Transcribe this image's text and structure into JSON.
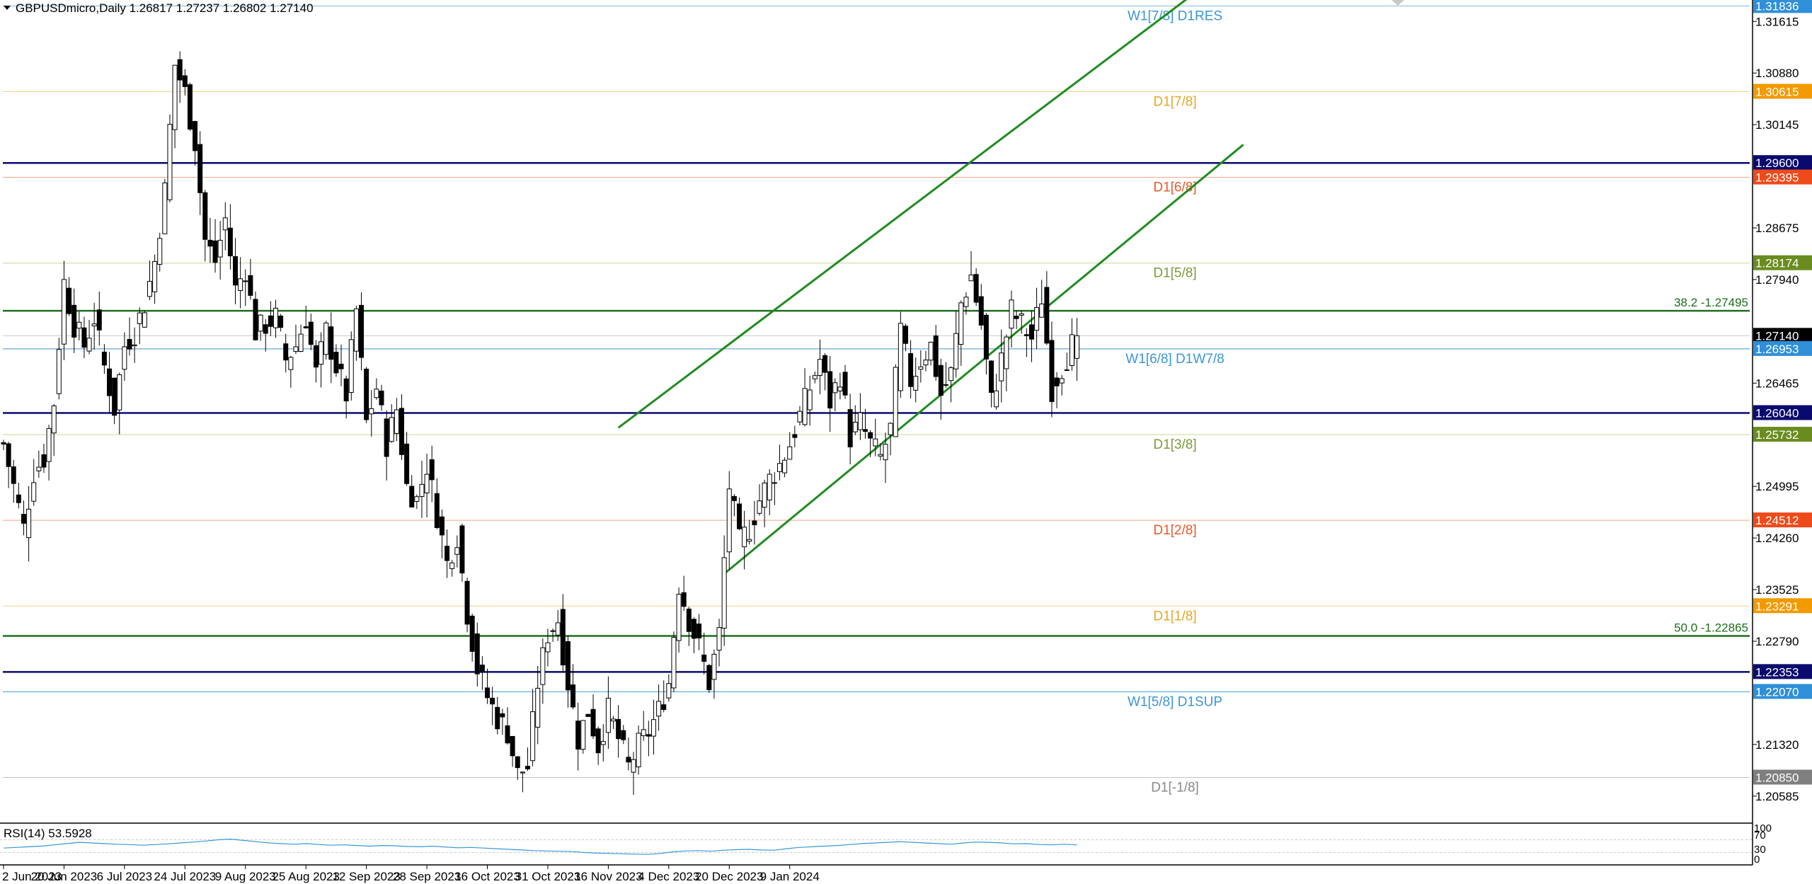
{
  "header": {
    "symbol_line": "GBPUSDmicro,Daily  1.26817 1.27237 1.26802 1.27140"
  },
  "chart_data": {
    "type": "candlestick",
    "symbol": "GBPUSDmicro",
    "timeframe": "Daily",
    "ohlc_last": {
      "open": 1.26817,
      "high": 1.27237,
      "low": 1.26802,
      "close": 1.2714
    },
    "ylim": [
      1.202,
      1.3192
    ],
    "y_ticks": [
      "1.31615",
      "1.30880",
      "1.30145",
      "1.28675",
      "1.27940",
      "1.26465",
      "1.24995",
      "1.24260",
      "1.23525",
      "1.22790",
      "1.21320",
      "1.20585"
    ],
    "x_ticks": [
      {
        "label": "2 Jun 2023",
        "bar": 0
      },
      {
        "label": "20 Jun 2023",
        "bar": 12
      },
      {
        "label": "6 Jul 2023",
        "bar": 24
      },
      {
        "label": "24 Jul 2023",
        "bar": 36
      },
      {
        "label": "9 Aug 2023",
        "bar": 48
      },
      {
        "label": "25 Aug 2023",
        "bar": 60
      },
      {
        "label": "12 Sep 2023",
        "bar": 72
      },
      {
        "label": "28 Sep 2023",
        "bar": 84
      },
      {
        "label": "16 Oct 2023",
        "bar": 96
      },
      {
        "label": "31 Oct 2023",
        "bar": 108
      },
      {
        "label": "16 Nov 2023",
        "bar": 120
      },
      {
        "label": "4 Dec 2023",
        "bar": 132
      },
      {
        "label": "20 Dec 2023",
        "bar": 144
      },
      {
        "label": "9 Jan 2024",
        "bar": 156
      }
    ],
    "price_labels": [
      {
        "value": 1.31836,
        "text": "1.31836",
        "color": "#2f8fd8"
      },
      {
        "value": 1.30615,
        "text": "1.30615",
        "color": "#f29a00"
      },
      {
        "value": 1.296,
        "text": "1.29600",
        "color": "#0a0a6e"
      },
      {
        "value": 1.29395,
        "text": "1.29395",
        "color": "#ee4a1a"
      },
      {
        "value": 1.28174,
        "text": "1.28174",
        "color": "#6a8c1f"
      },
      {
        "value": 1.2714,
        "text": "1.27140",
        "color": "#000000"
      },
      {
        "value": 1.26953,
        "text": "1.26953",
        "color": "#2f8fd8"
      },
      {
        "value": 1.2604,
        "text": "1.26040",
        "color": "#0a0a6e"
      },
      {
        "value": 1.25732,
        "text": "1.25732",
        "color": "#6a8c1f"
      },
      {
        "value": 1.24512,
        "text": "1.24512",
        "color": "#ee4a1a"
      },
      {
        "value": 1.23291,
        "text": "1.23291",
        "color": "#f29a00"
      },
      {
        "value": 1.22353,
        "text": "1.22353",
        "color": "#0a0a6e"
      },
      {
        "value": 1.2207,
        "text": "1.22070",
        "color": "#2f8fd8"
      },
      {
        "value": 1.2085,
        "text": "1.20850",
        "color": "#7f7f7f"
      }
    ],
    "levels": [
      {
        "value": 1.31836,
        "color": "#7fb8e0",
        "width": 1,
        "label": "W1[7/8] D1RES",
        "label_color": "#3a96d8"
      },
      {
        "value": 1.30615,
        "color": "#f5d08a",
        "width": 1,
        "label": "D1[7/8]",
        "label_color": "#e3a82a"
      },
      {
        "value": 1.296,
        "color": "#0a0a6e",
        "width": 2.5,
        "label": "",
        "label_color": ""
      },
      {
        "value": 1.29395,
        "color": "#f0a88a",
        "width": 1,
        "label": "D1[6/8]",
        "label_color": "#e85a2a"
      },
      {
        "value": 1.28174,
        "color": "#c9d89a",
        "width": 1,
        "label": "D1[5/8]",
        "label_color": "#7d9a3a"
      },
      {
        "value": 1.27495,
        "color": "#1e6e1e",
        "width": 2.5,
        "label": "",
        "label_color": ""
      },
      {
        "value": 1.2714,
        "color": "#c9c9c9",
        "width": 1,
        "label": "",
        "label_color": ""
      },
      {
        "value": 1.26953,
        "color": "#7fb8e0",
        "width": 1.5,
        "label": "W1[6/8] D1W7/8",
        "label_color": "#3a96d8"
      },
      {
        "value": 1.2604,
        "color": "#0a0a6e",
        "width": 2.5,
        "label": "",
        "label_color": ""
      },
      {
        "value": 1.25732,
        "color": "#c9d89a",
        "width": 1,
        "label": "D1[3/8]",
        "label_color": "#7d9a3a"
      },
      {
        "value": 1.24512,
        "color": "#f0a88a",
        "width": 1,
        "label": "D1[2/8]",
        "label_color": "#e85a2a"
      },
      {
        "value": 1.23291,
        "color": "#f5d08a",
        "width": 1,
        "label": "D1[1/8]",
        "label_color": "#e3a82a"
      },
      {
        "value": 1.22865,
        "color": "#1e6e1e",
        "width": 2.5,
        "label": "",
        "label_color": ""
      },
      {
        "value": 1.22353,
        "color": "#0a0a6e",
        "width": 2.5,
        "label": "",
        "label_color": ""
      },
      {
        "value": 1.2207,
        "color": "#7fb8e0",
        "width": 1.5,
        "label": "W1[5/8] D1SUP",
        "label_color": "#3a96d8"
      },
      {
        "value": 1.2085,
        "color": "#c4c4c4",
        "width": 1,
        "label": "D1[-1/8]",
        "label_color": "#8a8a8a"
      }
    ],
    "fib_labels": [
      {
        "value": 1.27495,
        "text": "38.2 -1.27495",
        "color": "#1e6e1e"
      },
      {
        "value": 1.22865,
        "text": "50.0 -1.22865",
        "color": "#1e6e1e"
      }
    ],
    "channel": {
      "color": "#1f8c1f",
      "upper": [
        {
          "bar": 122,
          "price": 1.2583
        },
        {
          "bar": 236,
          "price": 1.32
        }
      ],
      "lower": [
        {
          "bar": 143,
          "price": 1.2375
        },
        {
          "bar": 246,
          "price": 1.2986
        }
      ]
    },
    "close_path": [
      [
        0,
        1.256
      ],
      [
        4,
        1.244
      ],
      [
        6,
        1.252
      ],
      [
        8,
        1.254
      ],
      [
        10,
        1.262
      ],
      [
        12,
        1.279
      ],
      [
        14,
        1.273
      ],
      [
        16,
        1.27
      ],
      [
        18,
        1.274
      ],
      [
        20,
        1.267
      ],
      [
        22,
        1.261
      ],
      [
        24,
        1.27
      ],
      [
        26,
        1.272
      ],
      [
        28,
        1.276
      ],
      [
        30,
        1.282
      ],
      [
        32,
        1.292
      ],
      [
        34,
        1.31
      ],
      [
        36,
        1.306
      ],
      [
        38,
        1.299
      ],
      [
        40,
        1.285
      ],
      [
        42,
        1.282
      ],
      [
        44,
        1.288
      ],
      [
        46,
        1.278
      ],
      [
        48,
        1.281
      ],
      [
        50,
        1.272
      ],
      [
        52,
        1.273
      ],
      [
        54,
        1.274
      ],
      [
        56,
        1.268
      ],
      [
        58,
        1.27
      ],
      [
        60,
        1.274
      ],
      [
        62,
        1.266
      ],
      [
        64,
        1.272
      ],
      [
        66,
        1.267
      ],
      [
        68,
        1.263
      ],
      [
        70,
        1.275
      ],
      [
        72,
        1.259
      ],
      [
        74,
        1.264
      ],
      [
        76,
        1.256
      ],
      [
        78,
        1.261
      ],
      [
        80,
        1.25
      ],
      [
        82,
        1.248
      ],
      [
        84,
        1.253
      ],
      [
        86,
        1.246
      ],
      [
        88,
        1.239
      ],
      [
        90,
        1.243
      ],
      [
        92,
        1.232
      ],
      [
        94,
        1.224
      ],
      [
        96,
        1.22
      ],
      [
        98,
        1.217
      ],
      [
        100,
        1.215
      ],
      [
        102,
        1.209
      ],
      [
        104,
        1.21
      ],
      [
        106,
        1.222
      ],
      [
        108,
        1.229
      ],
      [
        110,
        1.231
      ],
      [
        112,
        1.222
      ],
      [
        114,
        1.214
      ],
      [
        116,
        1.218
      ],
      [
        118,
        1.213
      ],
      [
        120,
        1.218
      ],
      [
        122,
        1.214
      ],
      [
        124,
        1.21
      ],
      [
        126,
        1.213
      ],
      [
        128,
        1.215
      ],
      [
        130,
        1.218
      ],
      [
        132,
        1.222
      ],
      [
        134,
        1.236
      ],
      [
        136,
        1.231
      ],
      [
        138,
        1.227
      ],
      [
        140,
        1.222
      ],
      [
        142,
        1.229
      ],
      [
        144,
        1.25
      ],
      [
        146,
        1.242
      ],
      [
        148,
        1.244
      ],
      [
        150,
        1.248
      ],
      [
        152,
        1.251
      ],
      [
        154,
        1.253
      ],
      [
        156,
        1.256
      ],
      [
        158,
        1.26
      ],
      [
        160,
        1.264
      ],
      [
        162,
        1.268
      ],
      [
        164,
        1.262
      ],
      [
        166,
        1.266
      ],
      [
        168,
        1.257
      ],
      [
        170,
        1.259
      ],
      [
        172,
        1.256
      ],
      [
        174,
        1.254
      ],
      [
        176,
        1.258
      ],
      [
        178,
        1.272
      ],
      [
        180,
        1.265
      ],
      [
        182,
        1.268
      ],
      [
        184,
        1.27
      ],
      [
        186,
        1.263
      ],
      [
        188,
        1.266
      ],
      [
        190,
        1.276
      ],
      [
        192,
        1.28
      ],
      [
        194,
        1.273
      ],
      [
        196,
        1.262
      ],
      [
        198,
        1.268
      ],
      [
        200,
        1.275
      ],
      [
        202,
        1.273
      ],
      [
        204,
        1.271
      ],
      [
        206,
        1.277
      ],
      [
        208,
        1.264
      ],
      [
        210,
        1.267
      ],
      [
        212,
        1.27
      ],
      [
        213,
        1.2714
      ]
    ],
    "bar_count": 214,
    "rsi": {
      "label": "RSI(14) 53.5928",
      "period": 14,
      "value": 53.5928,
      "ticks": [
        "100",
        "70",
        "30",
        "0"
      ],
      "values": [
        44,
        46,
        48,
        50,
        54,
        58,
        62,
        60,
        58,
        56,
        55,
        53,
        55,
        57,
        60,
        63,
        66,
        70,
        72,
        68,
        64,
        60,
        58,
        56,
        58,
        55,
        53,
        54,
        52,
        50,
        52,
        51,
        49,
        48,
        50,
        47,
        45,
        46,
        44,
        42,
        40,
        38,
        36,
        35,
        34,
        33,
        30,
        28,
        27,
        26,
        25,
        24,
        27,
        32,
        35,
        36,
        34,
        37,
        39,
        40,
        38,
        37,
        42,
        46,
        48,
        50,
        52,
        55,
        58,
        60,
        62,
        64,
        62,
        60,
        58,
        56,
        60,
        63,
        62,
        60,
        57,
        58,
        55,
        54,
        56,
        54
      ]
    }
  }
}
